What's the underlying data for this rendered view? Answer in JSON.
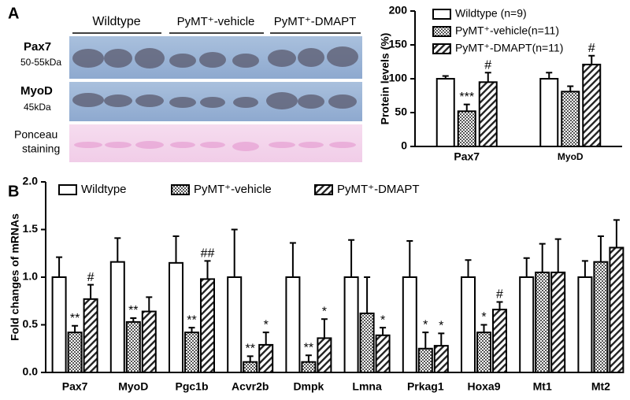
{
  "panels": [
    "A",
    "B"
  ],
  "blot": {
    "groups": [
      "Wildtype",
      "PyMT⁺-vehicle",
      "PyMT⁺-DMAPT"
    ],
    "rows": [
      {
        "protein": "Pax7",
        "size": "50-55kDa"
      },
      {
        "protein": "MyoD",
        "size": "45kDa"
      },
      {
        "protein": "Ponceau",
        "size": "staining"
      }
    ]
  },
  "chart_data": [
    {
      "type": "bar",
      "ylabel": "Protein levels (%)",
      "categories": [
        "Pax7",
        "MyoD"
      ],
      "ylim": [
        0,
        200
      ],
      "yticks": [
        0,
        50,
        100,
        150,
        200
      ],
      "legend": "upper right",
      "series": [
        {
          "name": "Wildtype (n=9)",
          "color": "#ffffff",
          "pattern": "none",
          "values": [
            100,
            100
          ],
          "errors": [
            4,
            9
          ],
          "significance": [
            null,
            null
          ]
        },
        {
          "name": "PyMT⁺-vehicle(n=11)",
          "color": "#555555",
          "pattern": "checker",
          "values": [
            52,
            81
          ],
          "errors": [
            10,
            8
          ],
          "significance": [
            "***",
            null
          ]
        },
        {
          "name": "PyMT⁺-DMAPT(n=11)",
          "color": "#222222",
          "pattern": "diagonal",
          "values": [
            95,
            121
          ],
          "errors": [
            14,
            13
          ],
          "significance": [
            "#",
            "#"
          ]
        }
      ]
    },
    {
      "type": "bar",
      "ylabel": "Fold changes of mRNAs",
      "categories": [
        "Pax7",
        "MyoD",
        "Pgc1b",
        "Acvr2b",
        "Dmpk",
        "Lmna",
        "Prkag1",
        "Hoxa9",
        "Mt1",
        "Mt2"
      ],
      "ylim": [
        0,
        2
      ],
      "yticks": [
        {
          "value": 0,
          "label": "0.0"
        },
        {
          "value": 0.5,
          "label": "0.5"
        },
        {
          "value": 1,
          "label": "1.0"
        },
        {
          "value": 1.5,
          "label": "1.5"
        },
        {
          "value": 2,
          "label": "2.0"
        }
      ],
      "legend": "top",
      "series": [
        {
          "name": "Wildtype",
          "color": "#ffffff",
          "pattern": "none",
          "values": [
            1,
            1.16,
            1.15,
            1,
            1,
            1,
            1,
            1,
            1,
            1
          ],
          "errors": [
            0.21,
            0.25,
            0.28,
            0.5,
            0.36,
            0.39,
            0.38,
            0.18,
            0.2,
            0.17
          ],
          "significance": [
            null,
            null,
            null,
            null,
            null,
            null,
            null,
            null,
            null,
            null
          ]
        },
        {
          "name": "PyMT⁺-vehicle",
          "color": "#555555",
          "pattern": "checker",
          "values": [
            0.42,
            0.53,
            0.42,
            0.11,
            0.11,
            0.62,
            0.25,
            0.42,
            1.05,
            1.16
          ],
          "errors": [
            0.07,
            0.04,
            0.05,
            0.06,
            0.07,
            0.38,
            0.17,
            0.08,
            0.3,
            0.27
          ],
          "significance": [
            "**",
            "**",
            "**",
            "**",
            "**",
            null,
            "*",
            "*",
            null,
            null
          ]
        },
        {
          "name": "PyMT⁺-DMAPT",
          "color": "#222222",
          "pattern": "diagonal",
          "values": [
            0.77,
            0.64,
            0.98,
            0.29,
            0.36,
            0.39,
            0.28,
            0.66,
            1.05,
            1.31
          ],
          "errors": [
            0.15,
            0.15,
            0.19,
            0.13,
            0.2,
            0.08,
            0.13,
            0.08,
            0.35,
            0.29
          ],
          "significance": [
            "#",
            null,
            "##",
            "*",
            "*",
            "*",
            "*",
            "#",
            null,
            null
          ]
        }
      ]
    }
  ]
}
